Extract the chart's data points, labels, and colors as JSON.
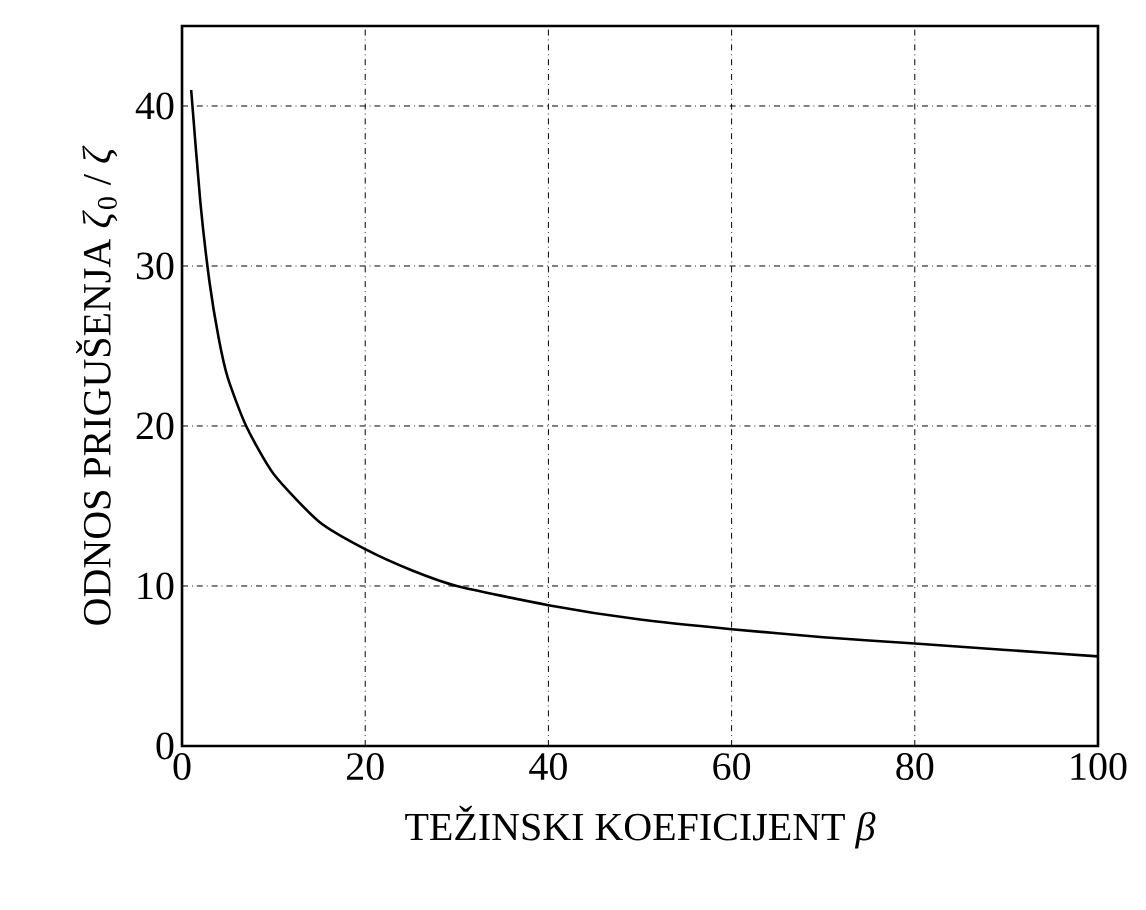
{
  "chart_data": {
    "type": "line",
    "xlabel": "TEŽINSKI KOEFICIJENT *β*",
    "ylabel": "ODNOS PRIGUŠENJA *ζ*$_{0}$ / *ζ*",
    "x": [
      1,
      2,
      3,
      4,
      5,
      7,
      10,
      15,
      20,
      25,
      30,
      40,
      50,
      60,
      70,
      80,
      90,
      100
    ],
    "series": [
      {
        "color": "#000000",
        "values": [
          41,
          34,
          29,
          25.5,
          23,
          20,
          17,
          14,
          12.3,
          11,
          10,
          8.8,
          7.9,
          7.3,
          6.8,
          6.4,
          6.0,
          5.6
        ]
      }
    ],
    "xlim": [
      0,
      100
    ],
    "ylim": [
      0,
      45
    ],
    "xticks": [
      0,
      20,
      40,
      60,
      80,
      100
    ],
    "yticks": [
      0,
      10,
      20,
      30,
      40
    ],
    "grid": true,
    "marker": "none",
    "line_style": "solid"
  }
}
